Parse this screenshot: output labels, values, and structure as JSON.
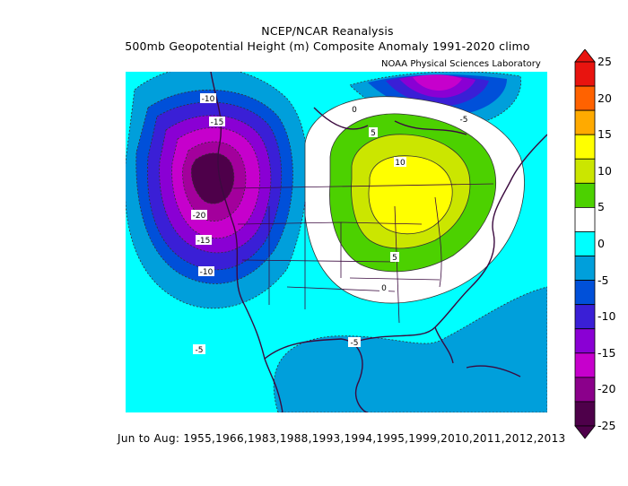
{
  "title": "NCEP/NCAR Reanalysis",
  "subtitle": "500mb Geopotential Height (m) Composite Anomaly 1991-2020 climo",
  "credit": "NOAA Physical Sciences Laboratory",
  "footer": "Jun to Aug: 1955,1966,1983,1988,1993,1994,1995,1999,2010,2011,2012,2013",
  "colorbar": {
    "labels": [
      "25",
      "20",
      "15",
      "10",
      "5",
      "0",
      "-5",
      "-10",
      "-15",
      "-20",
      "-25"
    ],
    "colors": [
      "#e8140f",
      "#ff6200",
      "#ffaa00",
      "#ffff00",
      "#cbe600",
      "#4cd100",
      "#ffffff",
      "#00ffff",
      "#009fdb",
      "#0050d9",
      "#3a1fd6",
      "#8a00d4",
      "#c600cc",
      "#8b008b",
      "#4e004a"
    ]
  },
  "map": {
    "land_outline_color": "#3b0a3f",
    "contour_labels": [
      "-10",
      "-15",
      "-20",
      "-15",
      "-10",
      "-5",
      "-5",
      "-5",
      "0",
      "5",
      "10",
      "5",
      "0",
      "-5"
    ]
  }
}
